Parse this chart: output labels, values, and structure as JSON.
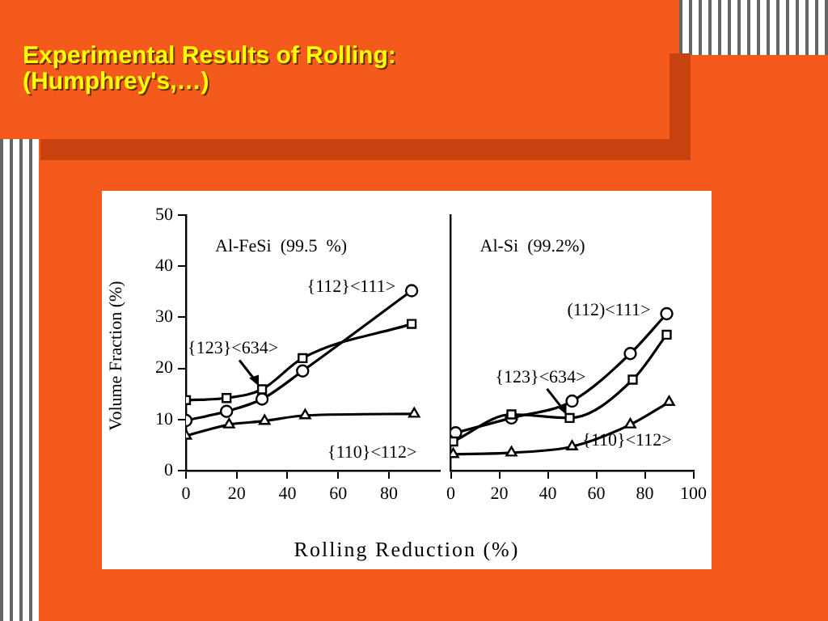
{
  "chart_data": [
    {
      "type": "line",
      "title": "Experimental Results of Rolling:\n(Humphrey's,…)",
      "xlabel": "Rolling  Reduction  (%)",
      "ylabel": "Volume Fraction (%)",
      "xlim": [
        0,
        100
      ],
      "xticks": [
        0,
        20,
        40,
        60,
        80
      ],
      "ylim": [
        0,
        50
      ],
      "yticks": [
        0,
        10,
        20,
        30,
        40,
        50
      ],
      "grid": false,
      "series": [
        {
          "name": "{112}<111>",
          "color": "#000000",
          "marker": "circle",
          "x": [
            0,
            16,
            30,
            46,
            89
          ],
          "values": [
            9.8,
            11.6,
            14,
            19.5,
            35.2
          ]
        },
        {
          "name": "{123}<634>",
          "color": "#000000",
          "marker": "square",
          "x": [
            0,
            16,
            30,
            46,
            89
          ],
          "values": [
            13.8,
            14.2,
            15.9,
            22,
            28.7
          ]
        },
        {
          "name": "{110}<112>",
          "color": "#000000",
          "marker": "triangle",
          "x": [
            0,
            17,
            31,
            47,
            90
          ],
          "values": [
            6.8,
            9,
            9.7,
            10.8,
            11.1
          ]
        }
      ],
      "annotations": [
        "Al-FeSi  (99.5  %)"
      ]
    },
    {
      "type": "line",
      "xlim": [
        0,
        100
      ],
      "xticks": [
        0,
        20,
        40,
        60,
        80,
        100
      ],
      "ylim": [
        0,
        50
      ],
      "yticks": [
        0,
        10,
        20,
        30,
        40,
        50
      ],
      "grid": false,
      "tick_labels": "x",
      "series": [
        {
          "name": "(112)<111>",
          "color": "#000000",
          "marker": "circle",
          "x": [
            2,
            25,
            50,
            74,
            89
          ],
          "values": [
            7.4,
            10.3,
            13.6,
            22.9,
            30.7
          ]
        },
        {
          "name": "{123}<634>",
          "color": "#000000",
          "marker": "square",
          "x": [
            1,
            25,
            49,
            75,
            89
          ],
          "values": [
            5.7,
            11,
            10.3,
            17.8,
            26.6
          ]
        },
        {
          "name": "{110}<112>",
          "color": "#000000",
          "marker": "triangle",
          "x": [
            1,
            25,
            50,
            74,
            90
          ],
          "values": [
            3.2,
            3.5,
            4.7,
            9,
            13.4
          ]
        }
      ],
      "annotations": [
        "Al-Si  (99.2%)"
      ]
    }
  ]
}
